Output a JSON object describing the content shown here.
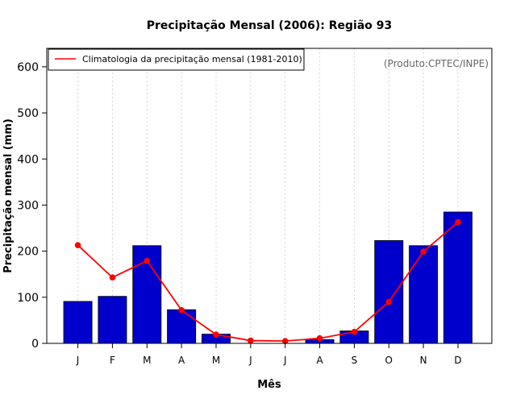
{
  "chart_data": {
    "type": "bar",
    "title": "Precipitação Mensal (2006): Região 93",
    "xlabel": "Mês",
    "ylabel": "Precipitação mensal (mm)",
    "ylim": [
      0,
      640
    ],
    "yticks": [
      0,
      100,
      200,
      300,
      400,
      500,
      600
    ],
    "categories": [
      "J",
      "F",
      "M",
      "A",
      "M",
      "J",
      "J",
      "A",
      "S",
      "O",
      "N",
      "D"
    ],
    "series": [
      {
        "name": "Precipitação mensal 2006",
        "type": "bar",
        "color": "#0000cd",
        "values": [
          91,
          102,
          212,
          73,
          20,
          0,
          0,
          8,
          27,
          223,
          212,
          285
        ]
      },
      {
        "name": "Climatologia da precipitação mensal (1981-2010)",
        "type": "line",
        "color": "#ff0000",
        "values": [
          213,
          143,
          179,
          72,
          19,
          6,
          5,
          11,
          25,
          90,
          199,
          263
        ]
      }
    ],
    "legend": {
      "label": "Climatologia da precipitação mensal (1981-2010)",
      "position": "top-left"
    },
    "credit": "(Produto:CPTEC/INPE)",
    "grid": "vertical-dotted"
  }
}
